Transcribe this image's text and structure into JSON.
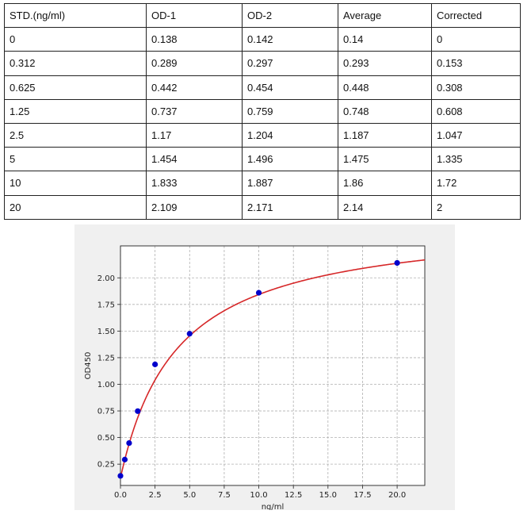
{
  "table": {
    "header": [
      "STD.(ng/ml)",
      "OD-1",
      "OD-2",
      "Average",
      "Corrected"
    ],
    "rows": [
      [
        "0",
        "0.138",
        "0.142",
        "0.14",
        "0"
      ],
      [
        "0.312",
        "0.289",
        "0.297",
        "0.293",
        "0.153"
      ],
      [
        "0.625",
        "0.442",
        "0.454",
        "0.448",
        "0.308"
      ],
      [
        "1.25",
        "0.737",
        "0.759",
        "0.748",
        "0.608"
      ],
      [
        "2.5",
        "1.17",
        "1.204",
        "1.187",
        "1.047"
      ],
      [
        "5",
        "1.454",
        "1.496",
        "1.475",
        "1.335"
      ],
      [
        "10",
        "1.833",
        "1.887",
        "1.86",
        "1.72"
      ],
      [
        "20",
        "2.109",
        "2.171",
        "2.14",
        "2"
      ]
    ]
  },
  "chart_data": {
    "type": "scatter",
    "xlabel": "ng/ml",
    "ylabel": "OD450",
    "xlim": [
      0,
      22
    ],
    "ylim": [
      0.05,
      2.3
    ],
    "xticks": [
      "0.0",
      "2.5",
      "5.0",
      "7.5",
      "10.0",
      "12.5",
      "15.0",
      "17.5",
      "20.0"
    ],
    "yticks": [
      "0.25",
      "0.50",
      "0.75",
      "1.00",
      "1.25",
      "1.50",
      "1.75",
      "2.00"
    ],
    "grid": true,
    "series": [
      {
        "kind": "points",
        "x": [
          0,
          0.312,
          0.625,
          1.25,
          2.5,
          5,
          10,
          20
        ],
        "y": [
          0.14,
          0.293,
          0.448,
          0.748,
          1.187,
          1.475,
          1.86,
          2.14
        ],
        "color": "#0000cc"
      },
      {
        "kind": "fit-curve",
        "color": "#d62728"
      }
    ]
  }
}
